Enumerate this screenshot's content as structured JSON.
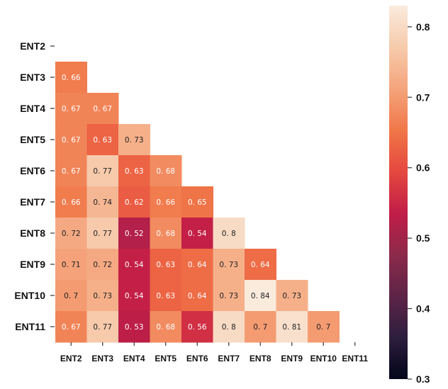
{
  "chart_data": {
    "type": "heatmap",
    "title": "",
    "rows": [
      "ENT2",
      "ENT3",
      "ENT4",
      "ENT5",
      "ENT6",
      "ENT7",
      "ENT8",
      "ENT9",
      "ENT10",
      "ENT11"
    ],
    "cols": [
      "ENT2",
      "ENT3",
      "ENT4",
      "ENT5",
      "ENT6",
      "ENT7",
      "ENT8",
      "ENT9",
      "ENT10",
      "ENT11"
    ],
    "values": [
      [],
      [
        0.66
      ],
      [
        0.67,
        0.67
      ],
      [
        0.67,
        0.63,
        0.73
      ],
      [
        0.67,
        0.77,
        0.63,
        0.68
      ],
      [
        0.66,
        0.74,
        0.62,
        0.66,
        0.65
      ],
      [
        0.72,
        0.77,
        0.52,
        0.68,
        0.54,
        0.8
      ],
      [
        0.71,
        0.72,
        0.54,
        0.63,
        0.64,
        0.73,
        0.64
      ],
      [
        0.7,
        0.73,
        0.54,
        0.63,
        0.64,
        0.73,
        0.84,
        0.73
      ],
      [
        0.67,
        0.77,
        0.53,
        0.68,
        0.56,
        0.8,
        0.7,
        0.81,
        0.7
      ]
    ],
    "colorbar": {
      "range": [
        0.3,
        0.83
      ],
      "ticks": [
        0.3,
        0.4,
        0.5,
        0.6,
        0.7,
        0.8
      ],
      "tick_labels": [
        "0.3",
        "0.4",
        "0.5",
        "0.6",
        "0.7",
        "0.8"
      ]
    },
    "colormap": [
      "#03051a",
      "#2d1e3e",
      "#5d2447",
      "#8c2a4a",
      "#c11d48",
      "#e5483f",
      "#f07748",
      "#f5a47c",
      "#f6cbac",
      "#faebdd"
    ]
  }
}
